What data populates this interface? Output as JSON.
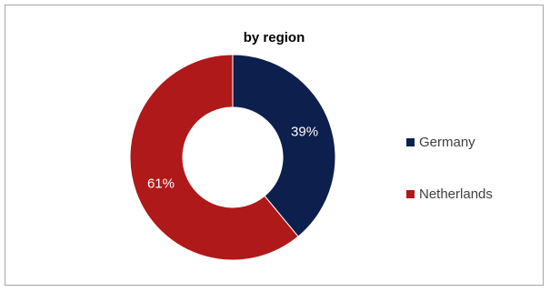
{
  "chart_data": {
    "type": "pie",
    "title": "by region",
    "categories": [
      "Germany",
      "Netherlands"
    ],
    "values": [
      39,
      61
    ],
    "labels": [
      "39%",
      "61%"
    ],
    "colors": [
      "#0d1f4d",
      "#b01919"
    ],
    "label_colors": [
      "#ffffff",
      "#ffffff"
    ],
    "donut": true,
    "legend_position": "right"
  }
}
